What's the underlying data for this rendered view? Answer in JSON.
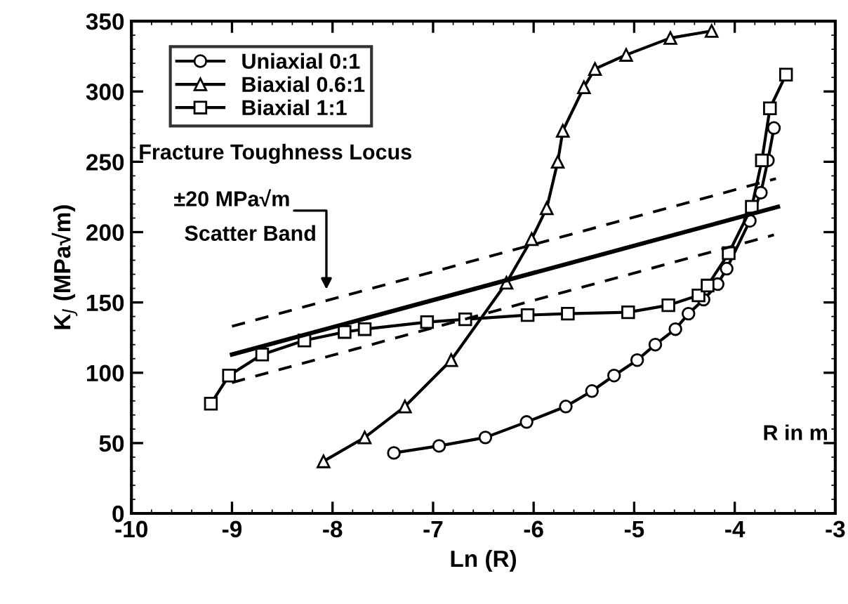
{
  "chart_data": {
    "type": "line",
    "xlabel": "Ln (R)",
    "ylabel": "K$_{J}$ (MPa√m)",
    "xlim": [
      -10,
      -3
    ],
    "xticks": [
      -10,
      -9,
      -8,
      -7,
      -6,
      -5,
      -4,
      -3
    ],
    "ylim": [
      0,
      350
    ],
    "yticks": [
      0,
      50,
      100,
      150,
      200,
      250,
      300,
      350
    ],
    "grid": false,
    "legend": "top left",
    "series": [
      {
        "name": "Uniaxial 0:1",
        "color": "#000000",
        "marker": "circle",
        "line_style": "solid",
        "x": [
          -7.39,
          -6.94,
          -6.48,
          -6.07,
          -5.68,
          -5.42,
          -5.2,
          -4.97,
          -4.79,
          -4.59,
          -4.46,
          -4.31,
          -4.17,
          -4.08,
          -3.85,
          -3.74,
          -3.67,
          -3.61
        ],
        "values": [
          43,
          48,
          54,
          65,
          76,
          87,
          98,
          109,
          120,
          131,
          142,
          152,
          163,
          174,
          208,
          228,
          251,
          274
        ]
      },
      {
        "name": "Biaxial 0.6:1",
        "color": "#000000",
        "marker": "triangle",
        "line_style": "solid",
        "x": [
          -8.09,
          -7.68,
          -7.28,
          -6.82,
          -6.27,
          -6.02,
          -5.87,
          -5.76,
          -5.71,
          -5.5,
          -5.39,
          -5.08,
          -4.64,
          -4.23
        ],
        "values": [
          37,
          54,
          76,
          109,
          164,
          195,
          217,
          250,
          272,
          303,
          316,
          326,
          338,
          343
        ]
      },
      {
        "name": "Biaxial 1:1",
        "color": "#000000",
        "marker": "square",
        "line_style": "solid",
        "x": [
          -9.21,
          -9.03,
          -8.7,
          -8.28,
          -7.88,
          -7.68,
          -7.06,
          -6.68,
          -6.06,
          -5.66,
          -5.06,
          -4.66,
          -4.36,
          -4.27,
          -4.06,
          -3.83,
          -3.73,
          -3.65,
          -3.49
        ],
        "values": [
          78,
          98,
          113,
          123,
          129,
          131,
          136,
          138,
          141,
          142,
          143,
          148,
          155,
          162,
          185,
          218,
          251,
          288,
          312
        ]
      },
      {
        "color": "#000000",
        "marker": "none",
        "line_style": "solid",
        "x": [
          -9.0,
          -3.57
        ],
        "values": [
          113,
          218
        ]
      },
      {
        "color": "#000000",
        "marker": "none",
        "line_style": "dashed",
        "x": [
          -9.0,
          -3.59
        ],
        "values": [
          133,
          238
        ]
      },
      {
        "color": "#000000",
        "marker": "none",
        "line_style": "dashed",
        "x": [
          -9.0,
          -3.61
        ],
        "values": [
          93,
          198
        ]
      }
    ],
    "annotations": [
      "Fracture Toughness Locus",
      "±20 MPa√m",
      "Scatter Band",
      "R in m"
    ]
  }
}
